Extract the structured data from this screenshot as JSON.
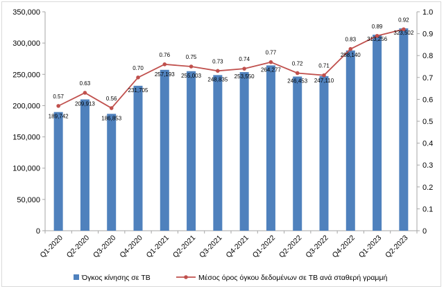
{
  "chart_data": {
    "type": "bar",
    "categories": [
      "Q1-2020",
      "Q2-2020",
      "Q3-2020",
      "Q4-2020",
      "Q1-2021",
      "Q2-2021",
      "Q3-2021",
      "Q4-2021",
      "Q1-2022",
      "Q2-2022",
      "Q3-2022",
      "Q4-2022",
      "Q1-2023",
      "Q2-2023"
    ],
    "series": [
      {
        "name": "Όγκος κίνησης σε TB",
        "type": "bar",
        "axis": "left",
        "color": "#4f81bd",
        "values": [
          189742,
          209913,
          186853,
          231705,
          257193,
          255003,
          248835,
          253550,
          264277,
          246453,
          247110,
          288140,
          313256,
          323502
        ],
        "labels": [
          "189,742",
          "209,913",
          "186,853",
          "231,705",
          "257,193",
          "255,003",
          "248,835",
          "253,550",
          "264,277",
          "246,453",
          "247,110",
          "288,140",
          "313,256",
          "323,502"
        ]
      },
      {
        "name": "Μέσος όρος όγκου δεδομένων σε TB ανά σταθερή γραμμή",
        "type": "line",
        "axis": "right",
        "color": "#c0504d",
        "values": [
          0.57,
          0.63,
          0.56,
          0.7,
          0.76,
          0.75,
          0.73,
          0.74,
          0.77,
          0.72,
          0.71,
          0.83,
          0.89,
          0.92
        ],
        "labels": [
          "0.57",
          "0.63",
          "0.56",
          "0.70",
          "0.76",
          "0.75",
          "0.73",
          "0.74",
          "0.77",
          "0.72",
          "0.71",
          "0.83",
          "0.89",
          "0.92"
        ]
      }
    ],
    "y_left": {
      "min": 0,
      "max": 350000,
      "ticks": [
        0,
        50000,
        100000,
        150000,
        200000,
        250000,
        300000,
        350000
      ],
      "tick_labels": [
        "0",
        "50,000",
        "100,000",
        "150,000",
        "200,000",
        "250,000",
        "300,000",
        "350,000"
      ]
    },
    "y_right": {
      "min": 0,
      "max": 1.0,
      "ticks": [
        0,
        0.1,
        0.2,
        0.3,
        0.4,
        0.5,
        0.6,
        0.7,
        0.8,
        0.9,
        1.0
      ],
      "tick_labels": [
        "0",
        "0.1",
        "0.2",
        "0.3",
        "0.4",
        "0.5",
        "0.6",
        "0.7",
        "0.8",
        "0.9",
        "1.0"
      ]
    },
    "grid": false,
    "legend": "bottom"
  }
}
